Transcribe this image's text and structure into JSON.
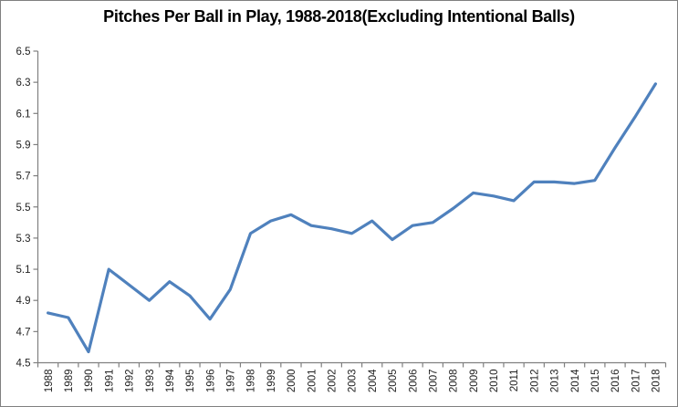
{
  "frame": {
    "background": "#FFFFFF",
    "border_color": "#808080"
  },
  "chart_data": {
    "type": "line",
    "title": "Pitches Per Ball in Play, 1988-2018(Excluding Intentional Balls)",
    "categories": [
      "1988",
      "1989",
      "1990",
      "1991",
      "1992",
      "1993",
      "1994",
      "1995",
      "1996",
      "1997",
      "1998",
      "1999",
      "2000",
      "2001",
      "2002",
      "2003",
      "2004",
      "2005",
      "2006",
      "2007",
      "2008",
      "2009",
      "2010",
      "2011",
      "2012",
      "2013",
      "2014",
      "2015",
      "2016",
      "2017",
      "2018"
    ],
    "values": [
      4.82,
      4.79,
      4.57,
      5.1,
      5.0,
      4.9,
      5.02,
      4.93,
      4.78,
      4.97,
      5.33,
      5.41,
      5.45,
      5.38,
      5.36,
      5.33,
      5.41,
      5.29,
      5.38,
      5.4,
      5.49,
      5.59,
      5.57,
      5.54,
      5.66,
      5.66,
      5.65,
      5.67,
      5.88,
      6.08,
      6.29
    ],
    "xlabel": "",
    "ylabel": "",
    "ylim": [
      4.5,
      6.5
    ],
    "ytick_step": 0.2,
    "ytick_labels": [
      "6.5",
      "6.3",
      "6.1",
      "5.9",
      "5.7",
      "5.5",
      "5.3",
      "5.1",
      "4.9",
      "4.7",
      "4.5"
    ],
    "grid": false,
    "legend": "none",
    "line_color": "#4F81BD",
    "axis_color": "#808080",
    "tick_label_color": "#1F1F1F",
    "title_color": "#000000"
  }
}
